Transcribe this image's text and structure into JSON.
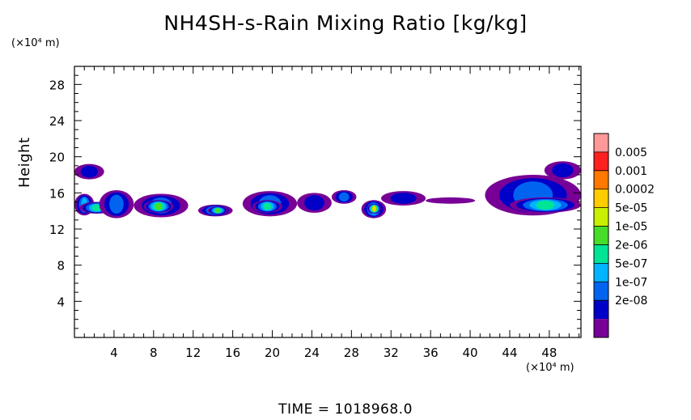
{
  "chart_data": {
    "type": "heatmap",
    "title": "NH4SH-s-Rain Mixing Ratio [kg/kg]",
    "ylabel": "Height",
    "y_unit": "(×10⁴ m)",
    "x_unit": "(×10⁴ m)",
    "xlim": [
      0,
      51.2
    ],
    "ylim": [
      0,
      30
    ],
    "x_ticks": [
      4,
      8,
      12,
      16,
      20,
      24,
      28,
      32,
      36,
      40,
      44,
      48
    ],
    "y_ticks": [
      4,
      8,
      12,
      16,
      20,
      24,
      28
    ],
    "colorbar": {
      "labels": [
        "0.005",
        "0.001",
        "0.0002",
        "5e-05",
        "1e-05",
        "2e-06",
        "5e-07",
        "1e-07",
        "2e-08"
      ],
      "colors": [
        "#ff9999",
        "#ff2020",
        "#ff7800",
        "#ffcc00",
        "#c8f000",
        "#46dc28",
        "#00e496",
        "#00b4ff",
        "#0064f0",
        "#0000c8",
        "#780096"
      ]
    },
    "regions": [
      {
        "x0": 0,
        "x1": 3.0,
        "y0": 17.5,
        "y1": 19.2,
        "level": 1
      },
      {
        "x0": 0,
        "x1": 2.0,
        "y0": 13.5,
        "y1": 15.9,
        "level": 3
      },
      {
        "x0": 0.5,
        "x1": 4.0,
        "y0": 13.7,
        "y1": 15.0,
        "level": 4
      },
      {
        "x0": 2.5,
        "x1": 6.0,
        "y0": 13.2,
        "y1": 16.3,
        "level": 2
      },
      {
        "x0": 6.0,
        "x1": 11.5,
        "y0": 13.3,
        "y1": 15.9,
        "level": 2
      },
      {
        "x0": 7.0,
        "x1": 10.0,
        "y0": 13.8,
        "y1": 15.2,
        "level": 5
      },
      {
        "x0": 12.5,
        "x1": 16.0,
        "y0": 13.4,
        "y1": 14.7,
        "level": 3
      },
      {
        "x0": 13.5,
        "x1": 15.5,
        "y0": 13.6,
        "y1": 14.5,
        "level": 5
      },
      {
        "x0": 17.0,
        "x1": 22.5,
        "y0": 13.4,
        "y1": 16.2,
        "level": 2
      },
      {
        "x0": 18.0,
        "x1": 21.0,
        "y0": 13.8,
        "y1": 15.2,
        "level": 4
      },
      {
        "x0": 22.5,
        "x1": 26.0,
        "y0": 13.8,
        "y1": 16.0,
        "level": 1
      },
      {
        "x0": 26.0,
        "x1": 28.5,
        "y0": 14.8,
        "y1": 16.3,
        "level": 2
      },
      {
        "x0": 29.0,
        "x1": 31.5,
        "y0": 13.2,
        "y1": 15.2,
        "level": 3
      },
      {
        "x0": 29.6,
        "x1": 31.0,
        "y0": 13.7,
        "y1": 14.8,
        "level": 7
      },
      {
        "x0": 31.0,
        "x1": 35.5,
        "y0": 14.6,
        "y1": 16.2,
        "level": 1
      },
      {
        "x0": 35.5,
        "x1": 40.5,
        "y0": 14.8,
        "y1": 15.5,
        "level": 0
      },
      {
        "x0": 41.5,
        "x1": 51.2,
        "y0": 13.5,
        "y1": 18.0,
        "level": 2
      },
      {
        "x0": 44.0,
        "x1": 51.2,
        "y0": 13.8,
        "y1": 15.5,
        "level": 4
      },
      {
        "x0": 47.5,
        "x1": 51.2,
        "y0": 17.5,
        "y1": 19.5,
        "level": 1
      }
    ]
  },
  "footer": {
    "time_label": "TIME = 1018968.0"
  }
}
